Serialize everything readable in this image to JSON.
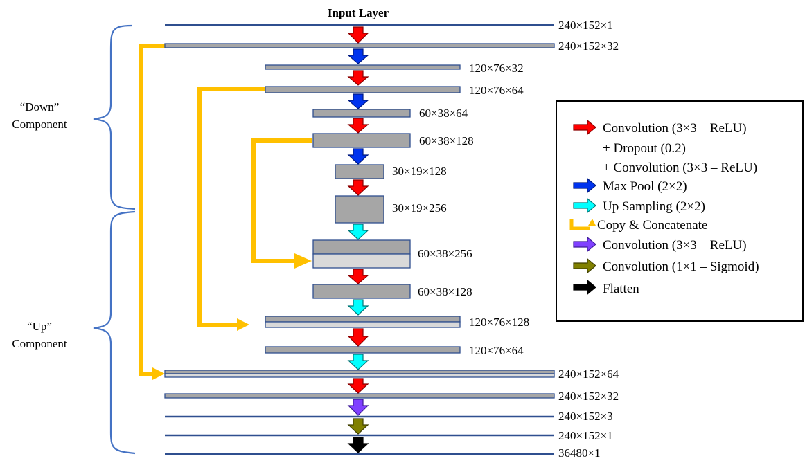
{
  "title": "Input Layer",
  "braces": {
    "down": [
      "“Down”",
      "Component"
    ],
    "up": [
      "“Up”",
      "Component"
    ]
  },
  "layers": [
    "240×152×1",
    "240×152×32",
    "120×76×32",
    "120×76×64",
    "60×38×64",
    "60×38×128",
    "30×19×128",
    "30×19×256",
    "60×38×256",
    "60×38×128",
    "120×76×128",
    "120×76×64",
    "240×152×64",
    "240×152×32",
    "240×152×3",
    "240×152×1",
    "36480×1"
  ],
  "legend": [
    "Convolution (3×3 – ReLU)",
    "+ Dropout (0.2)",
    "+ Convolution (3×3 – ReLU)",
    "Max Pool (2×2)",
    "Up Sampling (2×2)",
    "Copy & Concatenate",
    "Convolution (3×3 – ReLU)",
    "Convolution (1×1 – Sigmoid)",
    "Flatten"
  ],
  "colors": {
    "conv_dropout": "#ff0000",
    "max_pool": "#0033ee",
    "up_sampling": "#00ffff",
    "copy_concat": "#ffc000",
    "conv_relu": "#8040ff",
    "conv_sigmoid": "#808000",
    "flatten": "#000000",
    "layer_fill": "#a6a6a6",
    "layer_light": "#d9d9d9",
    "layer_border": "#2f4f8f",
    "brace": "#4472c4"
  }
}
